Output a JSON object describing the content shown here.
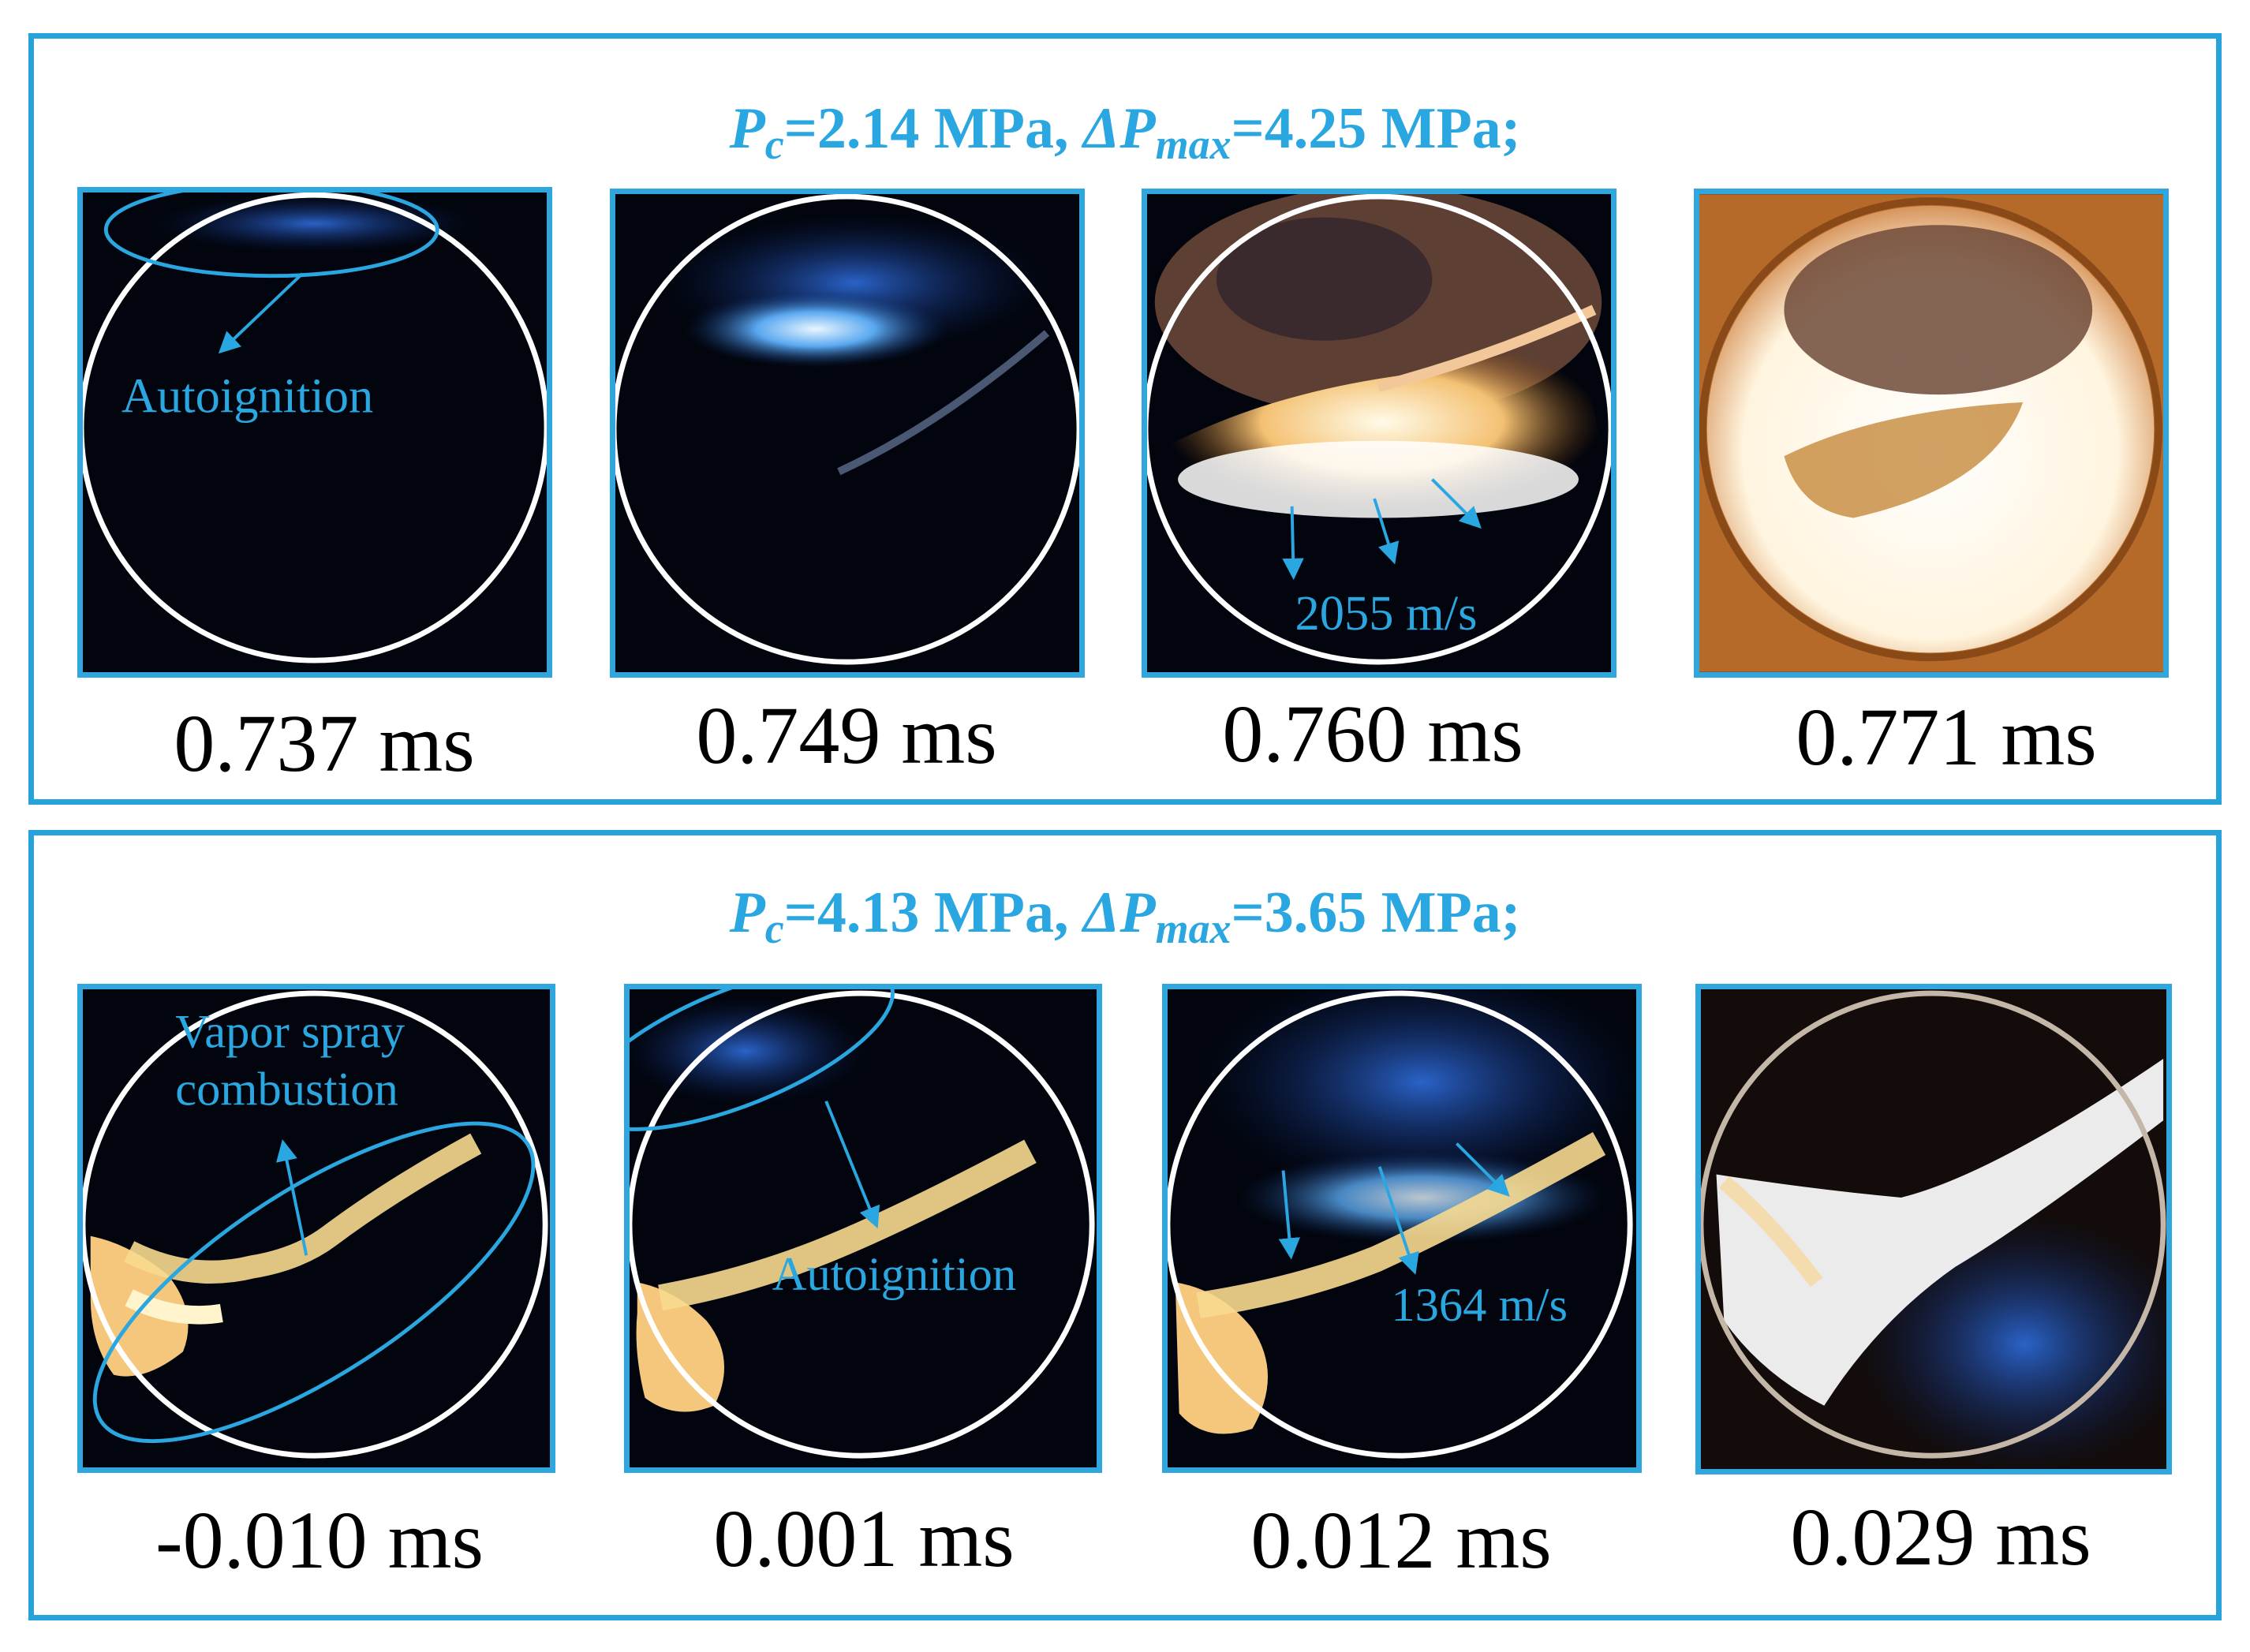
{
  "panels": [
    {
      "heading": {
        "p": "P",
        "p_sub": "c",
        "p_val": "=2.14 MPa, ",
        "dp": "ΔP",
        "dp_sub": "max",
        "dp_val": "=4.25 MPa;"
      },
      "frames": [
        {
          "time": "0.737 ms",
          "annotation": "Autoignition"
        },
        {
          "time": "0.749 ms",
          "annotation": ""
        },
        {
          "time": "0.760 ms",
          "annotation": "2055 m/s"
        },
        {
          "time": "0.771 ms",
          "annotation": ""
        }
      ]
    },
    {
      "heading": {
        "p": "P",
        "p_sub": "c",
        "p_val": "=4.13 MPa, ",
        "dp": "ΔP",
        "dp_sub": "max",
        "dp_val": "=3.65 MPa;"
      },
      "frames": [
        {
          "time": "-0.010 ms",
          "annotation": "Vapor spray",
          "annotation2": "combustion"
        },
        {
          "time": "0.001 ms",
          "annotation": "Autoignition"
        },
        {
          "time": "0.012 ms",
          "annotation": "1364 m/s"
        },
        {
          "time": "0.029 ms",
          "annotation": ""
        }
      ]
    }
  ],
  "colors": {
    "accent": "#2aa7e0",
    "border": "#27a3dc",
    "frame_bg": "#02050d"
  }
}
